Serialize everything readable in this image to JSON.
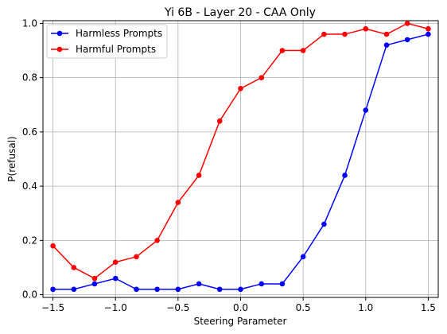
{
  "chart_data": {
    "type": "line",
    "title": "Yi 6B - Layer 20 - CAA Only",
    "xlabel": "Steering Parameter",
    "ylabel": "P(refusal)",
    "xlim": [
      -1.58,
      1.58
    ],
    "ylim": [
      -0.01,
      1.01
    ],
    "xticks": [
      -1.5,
      -1.0,
      -0.5,
      0.0,
      0.5,
      1.0,
      1.5
    ],
    "xtick_labels": [
      "−1.5",
      "−1.0",
      "−0.5",
      "0.0",
      "0.5",
      "1.0",
      "1.5"
    ],
    "yticks": [
      0.0,
      0.2,
      0.4,
      0.6,
      0.8,
      1.0
    ],
    "ytick_labels": [
      "0.0",
      "0.2",
      "0.4",
      "0.6",
      "0.8",
      "1.0"
    ],
    "grid": true,
    "legend_position": "top-left",
    "x": [
      -1.5,
      -1.333,
      -1.167,
      -1.0,
      -0.833,
      -0.667,
      -0.5,
      -0.333,
      -0.167,
      0.0,
      0.167,
      0.333,
      0.5,
      0.667,
      0.833,
      1.0,
      1.167,
      1.333,
      1.5
    ],
    "series": [
      {
        "name": "Harmless Prompts",
        "color": "#0000ff",
        "values": [
          0.02,
          0.02,
          0.04,
          0.06,
          0.02,
          0.02,
          0.02,
          0.04,
          0.02,
          0.02,
          0.04,
          0.04,
          0.14,
          0.26,
          0.44,
          0.68,
          0.92,
          0.94,
          0.96
        ]
      },
      {
        "name": "Harmful Prompts",
        "color": "#ff0000",
        "values": [
          0.18,
          0.1,
          0.06,
          0.12,
          0.14,
          0.2,
          0.34,
          0.44,
          0.64,
          0.76,
          0.8,
          0.9,
          0.9,
          0.96,
          0.96,
          0.98,
          0.96,
          1.0,
          0.98
        ]
      }
    ]
  }
}
